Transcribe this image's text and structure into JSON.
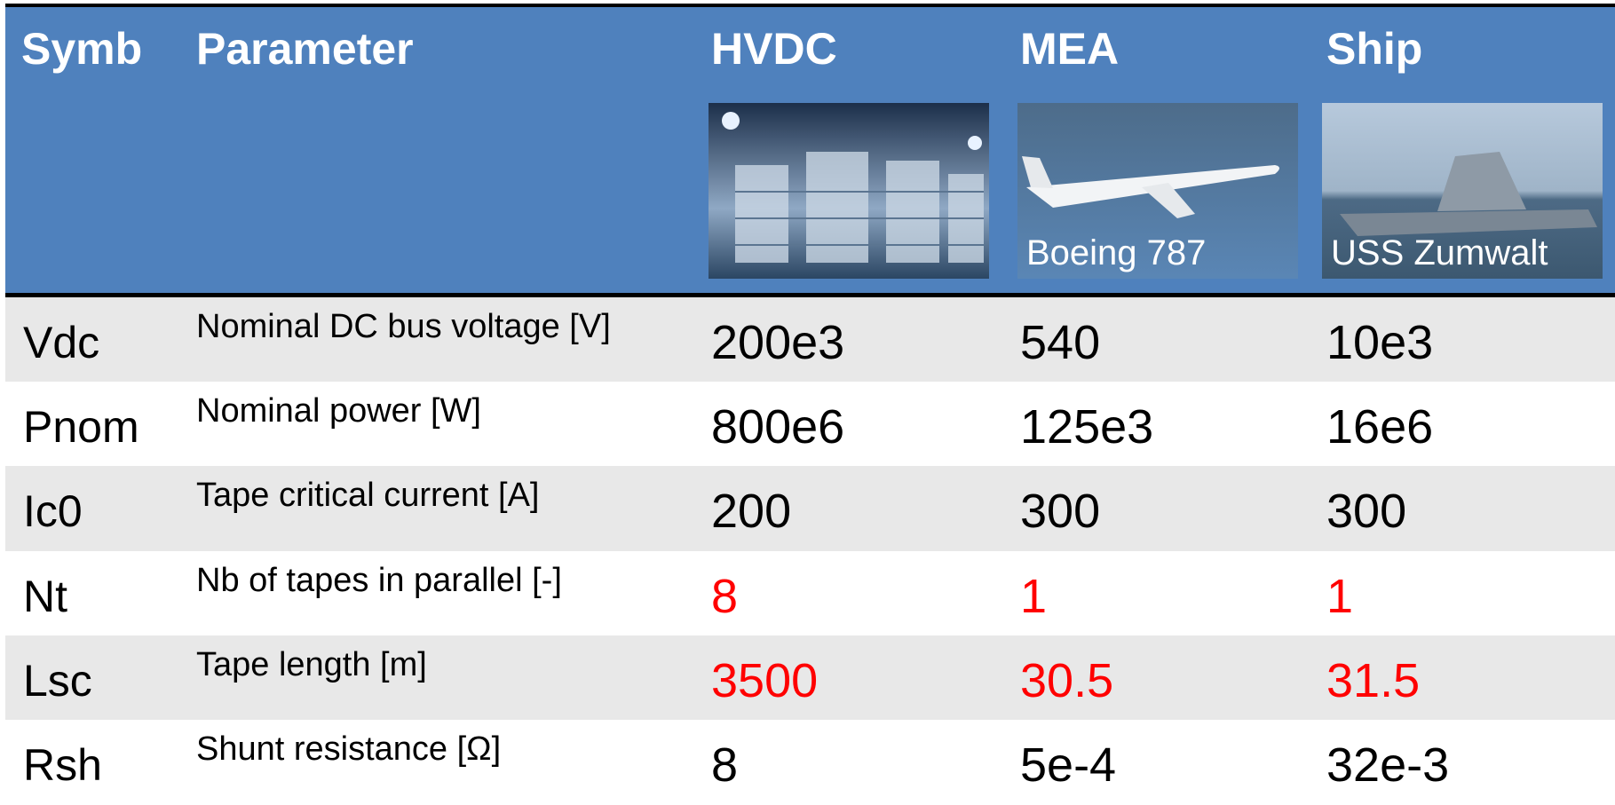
{
  "table": {
    "header": {
      "symbol": "Symb",
      "parameter": "Parameter",
      "columns": [
        {
          "name": "HVDC"
        },
        {
          "name": "MEA",
          "caption": "Boeing 787"
        },
        {
          "name": "Ship",
          "caption": "USS Zumwalt"
        }
      ]
    },
    "rows": [
      {
        "symbol": "Vdc",
        "parameter": "Nominal DC bus voltage [V]",
        "values": [
          "200e3",
          "540",
          "10e3"
        ],
        "color": "#000000"
      },
      {
        "symbol": "Pnom",
        "parameter": "Nominal power [W]",
        "values": [
          "800e6",
          "125e3",
          "16e6"
        ],
        "color": "#000000"
      },
      {
        "symbol": "Ic0",
        "parameter": "Tape critical current [A]",
        "values": [
          "200",
          "300",
          "300"
        ],
        "color": "#000000"
      },
      {
        "symbol": "Nt",
        "parameter": "Nb of tapes in parallel [-]",
        "values": [
          "8",
          "1",
          "1"
        ],
        "color": "#ff0000"
      },
      {
        "symbol": "Lsc",
        "parameter": "Tape length [m]",
        "values": [
          "3500",
          "30.5",
          "31.5"
        ],
        "color": "#ff0000"
      },
      {
        "symbol": "Rsh",
        "parameter": "Shunt resistance [Ω]",
        "values": [
          "8",
          "5e-4",
          "32e-3"
        ],
        "color": "#000000"
      }
    ]
  }
}
